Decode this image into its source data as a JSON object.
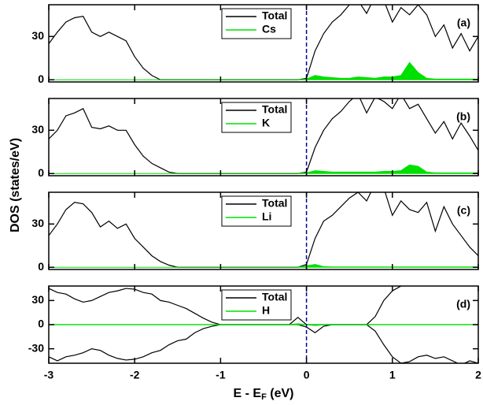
{
  "ylabel": "DOS (states/eV)",
  "xlabel": [
    "E - E",
    "F",
    " (eV)"
  ],
  "chart_data": [
    {
      "type": "line",
      "label": "(a)",
      "xlim": [
        -3,
        2
      ],
      "xticks": [
        -3,
        -2,
        -1,
        0,
        1,
        2
      ],
      "ylim": [
        -1.5,
        52
      ],
      "yticks": [
        0,
        30
      ],
      "vline": {
        "x": 0,
        "color": "#00008b",
        "dashed": true
      },
      "show_xticklabels": false,
      "x": [
        -3,
        -2.9,
        -2.8,
        -2.7,
        -2.6,
        -2.5,
        -2.4,
        -2.3,
        -2.2,
        -2.1,
        -2,
        -1.9,
        -1.8,
        -1.7,
        -1.6,
        -1.5,
        -1.4,
        -1.3,
        -1.2,
        -1.1,
        -1,
        -0.9,
        -0.8,
        -0.7,
        -0.6,
        -0.5,
        -0.4,
        -0.3,
        -0.2,
        -0.1,
        0,
        0.1,
        0.2,
        0.3,
        0.4,
        0.5,
        0.6,
        0.7,
        0.8,
        0.9,
        1,
        1.1,
        1.2,
        1.3,
        1.4,
        1.5,
        1.6,
        1.7,
        1.8,
        1.9,
        2
      ],
      "series": [
        {
          "name": "Total",
          "color": "#000000",
          "fill": false,
          "values": [
            25,
            33,
            40,
            43,
            44,
            33,
            30,
            33,
            30,
            27,
            16,
            8,
            3,
            0,
            0,
            0,
            0,
            0,
            0,
            0,
            0,
            0,
            0,
            0,
            0,
            0,
            0,
            0,
            0,
            0,
            1,
            20,
            32,
            40,
            45,
            52,
            55,
            46,
            58,
            55,
            40,
            50,
            45,
            52,
            45,
            30,
            38,
            22,
            32,
            20,
            30
          ]
        },
        {
          "name": "Cs",
          "color": "#00e000",
          "fill": true,
          "values": [
            0,
            0,
            0,
            0,
            0,
            0,
            0,
            0,
            0,
            0,
            0,
            0,
            0,
            0,
            0,
            0,
            0,
            0,
            0,
            0,
            0,
            0,
            0,
            0,
            0,
            0,
            0,
            0,
            0,
            0,
            0.5,
            3,
            2,
            1.5,
            1,
            1,
            2,
            1.5,
            1,
            2,
            2,
            3,
            12,
            5,
            1,
            0.5,
            0.5,
            0.5,
            0.5,
            0.5,
            0.5
          ]
        }
      ]
    },
    {
      "type": "line",
      "label": "(b)",
      "xlim": [
        -3,
        2
      ],
      "xticks": [
        -3,
        -2,
        -1,
        0,
        1,
        2
      ],
      "ylim": [
        -1.5,
        52
      ],
      "yticks": [
        0,
        30
      ],
      "vline": {
        "x": 0,
        "color": "#00008b",
        "dashed": true
      },
      "show_xticklabels": false,
      "x": [
        -3,
        -2.9,
        -2.8,
        -2.7,
        -2.6,
        -2.5,
        -2.4,
        -2.3,
        -2.2,
        -2.1,
        -2,
        -1.9,
        -1.8,
        -1.7,
        -1.6,
        -1.5,
        -1.4,
        -1.3,
        -1.2,
        -1.1,
        -1,
        -0.9,
        -0.8,
        -0.7,
        -0.6,
        -0.5,
        -0.4,
        -0.3,
        -0.2,
        -0.1,
        0,
        0.1,
        0.2,
        0.3,
        0.4,
        0.5,
        0.6,
        0.7,
        0.8,
        0.9,
        1,
        1.1,
        1.2,
        1.3,
        1.4,
        1.5,
        1.6,
        1.7,
        1.8,
        1.9,
        2
      ],
      "series": [
        {
          "name": "Total",
          "color": "#000000",
          "fill": false,
          "values": [
            24,
            30,
            40,
            42,
            45,
            32,
            31,
            33,
            30,
            30,
            20,
            12,
            7,
            4,
            1,
            0,
            0,
            0,
            0,
            0,
            0,
            0,
            0,
            0,
            0,
            0,
            0,
            0,
            0,
            0,
            1,
            18,
            30,
            38,
            43,
            50,
            55,
            42,
            53,
            50,
            45,
            55,
            45,
            48,
            38,
            28,
            36,
            24,
            35,
            26,
            16
          ]
        },
        {
          "name": "K",
          "color": "#00e000",
          "fill": true,
          "values": [
            0,
            0,
            0,
            0,
            0,
            0,
            0,
            0,
            0,
            0,
            0,
            0,
            0,
            0,
            0,
            0,
            0,
            0,
            0,
            0,
            0,
            0,
            0,
            0,
            0,
            0,
            0,
            0,
            0,
            0,
            0.5,
            2,
            1.5,
            1,
            1,
            1,
            1,
            1,
            1,
            1.5,
            1.5,
            2,
            6,
            5,
            1,
            0.5,
            0.5,
            0.5,
            0.5,
            0.5,
            0.5
          ]
        }
      ]
    },
    {
      "type": "line",
      "label": "(c)",
      "xlim": [
        -3,
        2
      ],
      "xticks": [
        -3,
        -2,
        -1,
        0,
        1,
        2
      ],
      "ylim": [
        -1.5,
        52
      ],
      "yticks": [
        0,
        30
      ],
      "vline": {
        "x": 0,
        "color": "#00008b",
        "dashed": true
      },
      "show_xticklabels": false,
      "x": [
        -3,
        -2.9,
        -2.8,
        -2.7,
        -2.6,
        -2.5,
        -2.4,
        -2.3,
        -2.2,
        -2.1,
        -2,
        -1.9,
        -1.8,
        -1.7,
        -1.6,
        -1.5,
        -1.4,
        -1.3,
        -1.2,
        -1.1,
        -1,
        -0.9,
        -0.8,
        -0.7,
        -0.6,
        -0.5,
        -0.4,
        -0.3,
        -0.2,
        -0.1,
        0,
        0.1,
        0.2,
        0.3,
        0.4,
        0.5,
        0.6,
        0.7,
        0.8,
        0.9,
        1,
        1.1,
        1.2,
        1.3,
        1.4,
        1.5,
        1.6,
        1.7,
        1.8,
        1.9,
        2
      ],
      "series": [
        {
          "name": "Total",
          "color": "#000000",
          "fill": false,
          "values": [
            22,
            30,
            40,
            45,
            44,
            38,
            28,
            32,
            27,
            30,
            20,
            14,
            8,
            4,
            1.5,
            0,
            0,
            0,
            0,
            0,
            0,
            0,
            0,
            0,
            0,
            0,
            0,
            0,
            0,
            0,
            2,
            20,
            32,
            36,
            42,
            48,
            52,
            46,
            58,
            55,
            36,
            46,
            40,
            38,
            45,
            25,
            42,
            30,
            22,
            14,
            8
          ]
        },
        {
          "name": "Li",
          "color": "#00e000",
          "fill": true,
          "values": [
            0,
            0,
            0,
            0,
            0,
            0,
            0,
            0,
            0,
            0,
            0,
            0,
            0,
            0,
            0,
            0,
            0,
            0,
            0,
            0,
            0,
            0,
            0,
            0,
            0,
            0,
            0,
            0,
            0,
            0,
            1,
            2,
            0.5,
            0.3,
            0.3,
            0.3,
            0.3,
            0.3,
            0.3,
            0.3,
            0.3,
            0.3,
            0.3,
            0.3,
            0.3,
            0.3,
            0.3,
            0.3,
            0.3,
            0.3,
            0.3
          ]
        }
      ]
    },
    {
      "type": "line",
      "label": "(d)",
      "xlim": [
        -3,
        2
      ],
      "xticks": [
        -3,
        -2,
        -1,
        0,
        1,
        2
      ],
      "ylim": [
        -48,
        48
      ],
      "yticks": [
        -30,
        0,
        30
      ],
      "vline": {
        "x": 0,
        "color": "#00008b",
        "dashed": true
      },
      "show_xticklabels": true,
      "x": [
        -3,
        -2.9,
        -2.8,
        -2.7,
        -2.6,
        -2.5,
        -2.4,
        -2.3,
        -2.2,
        -2.1,
        -2,
        -1.9,
        -1.8,
        -1.7,
        -1.6,
        -1.5,
        -1.4,
        -1.3,
        -1.2,
        -1.1,
        -1,
        -0.9,
        -0.8,
        -0.7,
        -0.6,
        -0.5,
        -0.4,
        -0.3,
        -0.2,
        -0.1,
        0,
        0.1,
        0.2,
        0.3,
        0.4,
        0.5,
        0.6,
        0.7,
        0.8,
        0.9,
        1,
        1.1,
        1.2,
        1.3,
        1.4,
        1.5,
        1.6,
        1.7,
        1.8,
        1.9,
        2
      ],
      "series": [
        {
          "name": "Total",
          "color": "#000000",
          "fill": false,
          "values": [
            45,
            40,
            38,
            32,
            28,
            30,
            35,
            40,
            42,
            45,
            44,
            40,
            38,
            30,
            28,
            24,
            20,
            14,
            8,
            3,
            0,
            0,
            0,
            0,
            0,
            0,
            0,
            0,
            0,
            9,
            0,
            0,
            0,
            0,
            0,
            0,
            0,
            0,
            10,
            30,
            42,
            48,
            50,
            52,
            55,
            52,
            50,
            53,
            55,
            52,
            55
          ],
          "down_values": [
            -40,
            -45,
            -40,
            -38,
            -35,
            -30,
            -32,
            -38,
            -42,
            -44,
            -43,
            -40,
            -35,
            -32,
            -25,
            -20,
            -18,
            -10,
            -5,
            -2,
            0,
            0,
            0,
            0,
            0,
            0,
            0,
            0,
            0,
            0,
            -3,
            -10,
            -2,
            0,
            0,
            0,
            0,
            0,
            -8,
            -25,
            -40,
            -48,
            -46,
            -40,
            -38,
            -42,
            -40,
            -45,
            -50,
            -45,
            -48
          ]
        },
        {
          "name": "H",
          "color": "#00e000",
          "fill": false,
          "values": [
            0,
            0,
            0,
            0,
            0,
            0,
            0,
            0,
            0,
            0,
            0,
            0,
            0,
            0,
            0,
            0,
            0,
            0,
            0,
            0,
            0,
            0,
            0,
            0,
            0,
            0,
            0,
            0,
            0,
            1,
            0,
            0,
            0,
            0,
            0,
            0,
            0,
            0,
            0,
            0,
            0,
            0,
            0,
            0,
            0,
            0,
            0,
            0,
            0,
            0,
            0
          ],
          "down_values": [
            0,
            0,
            0,
            0,
            0,
            0,
            0,
            0,
            0,
            0,
            0,
            0,
            0,
            0,
            0,
            0,
            0,
            0,
            0,
            0,
            0,
            0,
            0,
            0,
            0,
            0,
            0,
            0,
            0,
            0,
            0,
            -1,
            0,
            0,
            0,
            0,
            0,
            0,
            0,
            0,
            0,
            0,
            0,
            0,
            0,
            0,
            0,
            0,
            0,
            0,
            0
          ]
        }
      ]
    }
  ]
}
